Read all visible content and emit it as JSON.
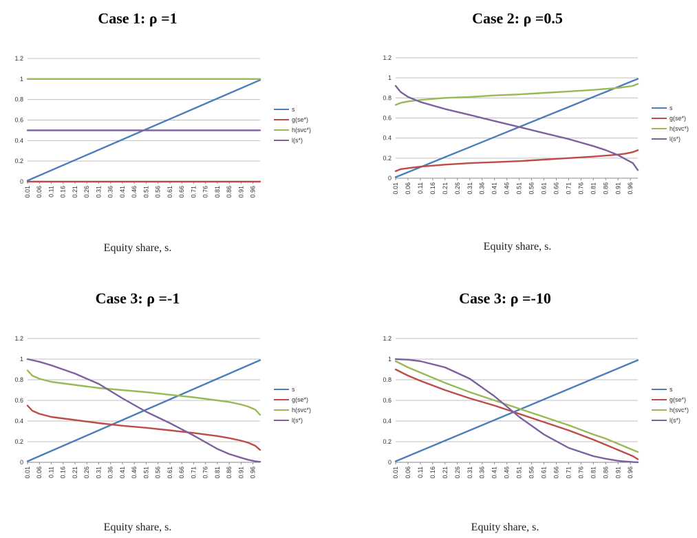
{
  "colors": {
    "s": "#4a7ebb",
    "g": "#be4b48",
    "h": "#98b954",
    "l": "#7d60a0",
    "grid": "#bfbfbf",
    "axis": "#888888"
  },
  "chart_data": [
    {
      "type": "line",
      "title": "Case 1: ρ =1",
      "xlabel": "Equity share, s.",
      "ylim": [
        0,
        1.2
      ],
      "yticks": [
        "0",
        "0.2",
        "0.4",
        "0.6",
        "0.8",
        "1",
        "1.2"
      ],
      "xticks": [
        "0.01",
        "0.06",
        "0.11",
        "0.16",
        "0.21",
        "0.26",
        "0.31",
        "0.36",
        "0.41",
        "0.46",
        "0.51",
        "0.56",
        "0.61",
        "0.66",
        "0.71",
        "0.76",
        "0.81",
        "0.86",
        "0.91",
        "0.96"
      ],
      "x": [
        0.01,
        0.25,
        0.5,
        0.75,
        0.99
      ],
      "legend": "right",
      "series": [
        {
          "name": "s",
          "values": [
            0.01,
            0.25,
            0.5,
            0.75,
            0.99
          ]
        },
        {
          "name": "g(se*)",
          "values": [
            0,
            0,
            0,
            0,
            0
          ]
        },
        {
          "name": "h(svc*)",
          "values": [
            1,
            1,
            1,
            1,
            1
          ]
        },
        {
          "name": "l(s*)",
          "values": [
            0.5,
            0.5,
            0.5,
            0.5,
            0.5
          ]
        }
      ]
    },
    {
      "type": "line",
      "title": "Case 2: ρ =0.5",
      "xlabel": "Equity share, s.",
      "ylim": [
        0,
        1.2
      ],
      "yticks": [
        "0",
        "0.2",
        "0.4",
        "0.6",
        "0.8",
        "1",
        "1.2"
      ],
      "xticks": [
        "0.01",
        "0.06",
        "0.11",
        "0.16",
        "0.21",
        "0.26",
        "0.31",
        "0.36",
        "0.41",
        "0.46",
        "0.51",
        "0.56",
        "0.61",
        "0.66",
        "0.71",
        "0.76",
        "0.81",
        "0.86",
        "0.91",
        "0.96"
      ],
      "x": [
        0.01,
        0.03,
        0.06,
        0.11,
        0.21,
        0.31,
        0.41,
        0.51,
        0.61,
        0.71,
        0.81,
        0.86,
        0.91,
        0.94,
        0.97,
        0.99
      ],
      "legend": "right",
      "series": [
        {
          "name": "s",
          "values": [
            0.01,
            0.03,
            0.06,
            0.11,
            0.21,
            0.31,
            0.41,
            0.51,
            0.61,
            0.71,
            0.81,
            0.86,
            0.91,
            0.94,
            0.97,
            0.99
          ]
        },
        {
          "name": "g(se*)",
          "values": [
            0.07,
            0.09,
            0.1,
            0.115,
            0.135,
            0.15,
            0.16,
            0.17,
            0.185,
            0.2,
            0.215,
            0.225,
            0.235,
            0.245,
            0.26,
            0.28
          ]
        },
        {
          "name": "h(svc*)",
          "values": [
            0.73,
            0.75,
            0.765,
            0.78,
            0.8,
            0.81,
            0.825,
            0.835,
            0.85,
            0.865,
            0.88,
            0.89,
            0.9,
            0.91,
            0.92,
            0.94
          ]
        },
        {
          "name": "l(s*)",
          "values": [
            0.92,
            0.86,
            0.81,
            0.76,
            0.69,
            0.63,
            0.57,
            0.51,
            0.45,
            0.39,
            0.32,
            0.28,
            0.23,
            0.19,
            0.15,
            0.08
          ]
        }
      ]
    },
    {
      "type": "line",
      "title": "Case 3: ρ =-1",
      "xlabel": "Equity share, s.",
      "ylim": [
        0,
        1.2
      ],
      "yticks": [
        "0",
        "0.2",
        "0.4",
        "0.6",
        "0.8",
        "1",
        "1.2"
      ],
      "xticks": [
        "0.01",
        "0.06",
        "0.11",
        "0.16",
        "0.21",
        "0.26",
        "0.31",
        "0.36",
        "0.41",
        "0.46",
        "0.51",
        "0.56",
        "0.61",
        "0.66",
        "0.71",
        "0.76",
        "0.81",
        "0.86",
        "0.91",
        "0.96"
      ],
      "x": [
        0.01,
        0.03,
        0.06,
        0.11,
        0.21,
        0.31,
        0.41,
        0.51,
        0.61,
        0.71,
        0.81,
        0.86,
        0.91,
        0.94,
        0.97,
        0.99
      ],
      "legend": "right",
      "series": [
        {
          "name": "s",
          "values": [
            0.01,
            0.03,
            0.06,
            0.11,
            0.21,
            0.31,
            0.41,
            0.51,
            0.61,
            0.71,
            0.81,
            0.86,
            0.91,
            0.94,
            0.97,
            0.99
          ]
        },
        {
          "name": "g(se*)",
          "values": [
            0.55,
            0.5,
            0.47,
            0.44,
            0.41,
            0.38,
            0.355,
            0.335,
            0.31,
            0.285,
            0.255,
            0.235,
            0.21,
            0.19,
            0.16,
            0.12
          ]
        },
        {
          "name": "h(svc*)",
          "values": [
            0.89,
            0.84,
            0.81,
            0.78,
            0.75,
            0.72,
            0.7,
            0.68,
            0.655,
            0.63,
            0.6,
            0.585,
            0.56,
            0.54,
            0.51,
            0.46
          ]
        },
        {
          "name": "l(s*)",
          "values": [
            1.0,
            0.99,
            0.975,
            0.94,
            0.86,
            0.76,
            0.62,
            0.49,
            0.38,
            0.26,
            0.13,
            0.08,
            0.045,
            0.025,
            0.01,
            0.005
          ]
        }
      ]
    },
    {
      "type": "line",
      "title": "Case 3: ρ =-10",
      "xlabel": "Equity share, s.",
      "ylim": [
        0,
        1.2
      ],
      "yticks": [
        "0",
        "0.2",
        "0.4",
        "0.6",
        "0.8",
        "1",
        "1.2"
      ],
      "xticks": [
        "0.01",
        "0.06",
        "0.11",
        "0.16",
        "0.21",
        "0.26",
        "0.31",
        "0.36",
        "0.41",
        "0.46",
        "0.51",
        "0.56",
        "0.61",
        "0.66",
        "0.71",
        "0.76",
        "0.81",
        "0.86",
        "0.91",
        "0.96"
      ],
      "x": [
        0.01,
        0.06,
        0.11,
        0.21,
        0.31,
        0.41,
        0.51,
        0.61,
        0.71,
        0.81,
        0.86,
        0.91,
        0.94,
        0.97,
        0.99
      ],
      "legend": "right",
      "series": [
        {
          "name": "s",
          "values": [
            0.01,
            0.06,
            0.11,
            0.21,
            0.31,
            0.41,
            0.51,
            0.61,
            0.71,
            0.81,
            0.86,
            0.91,
            0.94,
            0.97,
            0.99
          ]
        },
        {
          "name": "g(se*)",
          "values": [
            0.9,
            0.84,
            0.79,
            0.7,
            0.62,
            0.55,
            0.47,
            0.39,
            0.31,
            0.22,
            0.17,
            0.12,
            0.09,
            0.06,
            0.03
          ]
        },
        {
          "name": "h(svc*)",
          "values": [
            0.98,
            0.92,
            0.87,
            0.77,
            0.68,
            0.6,
            0.52,
            0.44,
            0.36,
            0.27,
            0.23,
            0.18,
            0.15,
            0.12,
            0.1
          ]
        },
        {
          "name": "l(s*)",
          "values": [
            1.0,
            0.995,
            0.98,
            0.92,
            0.81,
            0.64,
            0.44,
            0.27,
            0.14,
            0.06,
            0.035,
            0.015,
            0.008,
            0.003,
            0.001
          ]
        }
      ]
    }
  ]
}
